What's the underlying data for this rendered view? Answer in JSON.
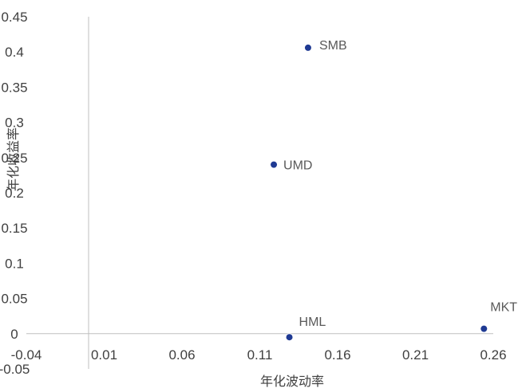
{
  "chart_data": {
    "type": "scatter",
    "title": "",
    "xlabel": "年化波动率",
    "ylabel": "年化收益率",
    "xlim": [
      -0.04,
      0.26
    ],
    "ylim": [
      -0.05,
      0.45
    ],
    "xticks": [
      "-0.04",
      "0.01",
      "0.06",
      "0.11",
      "0.16",
      "0.21",
      "0.26"
    ],
    "yticks": [
      "0.45",
      "0.4",
      "0.35",
      "0.3",
      "0.25",
      "0.2",
      "0.15",
      "0.1",
      "0.05",
      "0",
      "-0.05"
    ],
    "grid": false,
    "legend": "none",
    "marker_color": "#1F3A93",
    "points": [
      {
        "label": "SMB",
        "x": 0.141,
        "y": 0.406
      },
      {
        "label": "UMD",
        "x": 0.119,
        "y": 0.24
      },
      {
        "label": "HML",
        "x": 0.129,
        "y": -0.005
      },
      {
        "label": "MKT",
        "x": 0.254,
        "y": 0.007
      }
    ]
  }
}
